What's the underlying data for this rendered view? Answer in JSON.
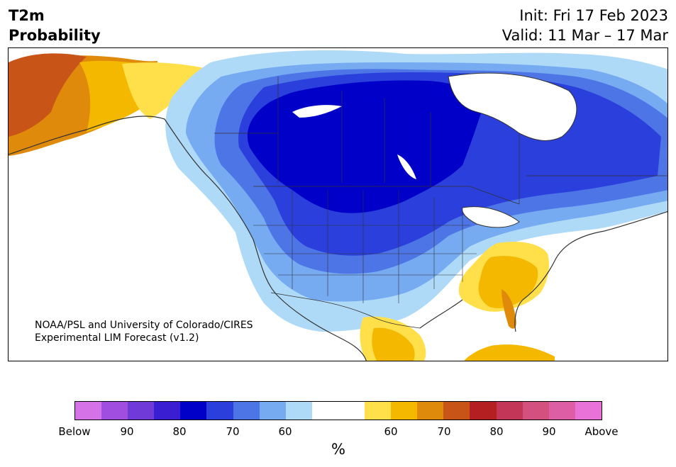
{
  "header": {
    "title_line1": "T2m",
    "title_line2": "Probability",
    "init": "Init: Fri 17 Feb 2023",
    "valid": "Valid: 11 Mar – 17 Mar"
  },
  "credit": {
    "line1": "NOAA/PSL and University of Colorado/CIRES",
    "line2": "Experimental LIM Forecast (v1.2)"
  },
  "colorbar": {
    "colors": [
      "#d672e8",
      "#a04ee0",
      "#6f3ad8",
      "#3a1fd2",
      "#0000c8",
      "#2a3fdc",
      "#4e75e6",
      "#76abf2",
      "#aedaf8",
      "#ffffff",
      "#ffffff",
      "#ffe04a",
      "#f5b800",
      "#df8a0a",
      "#c85418",
      "#b42022",
      "#c43658",
      "#d4507e",
      "#de5ea6",
      "#e872d8"
    ],
    "labels": [
      "Below",
      "90",
      "80",
      "70",
      "60",
      "60",
      "70",
      "80",
      "90",
      "Above"
    ],
    "unit": "%"
  }
}
